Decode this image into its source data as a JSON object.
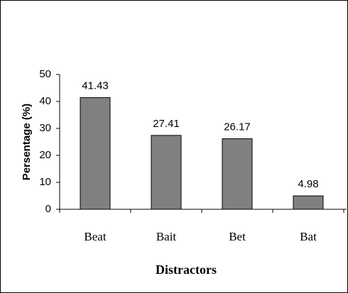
{
  "chart_data": {
    "type": "bar",
    "categories": [
      "Beat",
      "Bait",
      "Bet",
      "Bat"
    ],
    "values": [
      41.43,
      27.41,
      26.17,
      4.98
    ],
    "color": "#808080",
    "ylim": [
      0,
      50
    ],
    "yticks": [
      0,
      10,
      20,
      30,
      40,
      50
    ],
    "ylabel": "Persentage (%)",
    "xlabel": "Distractors",
    "grid": false
  }
}
